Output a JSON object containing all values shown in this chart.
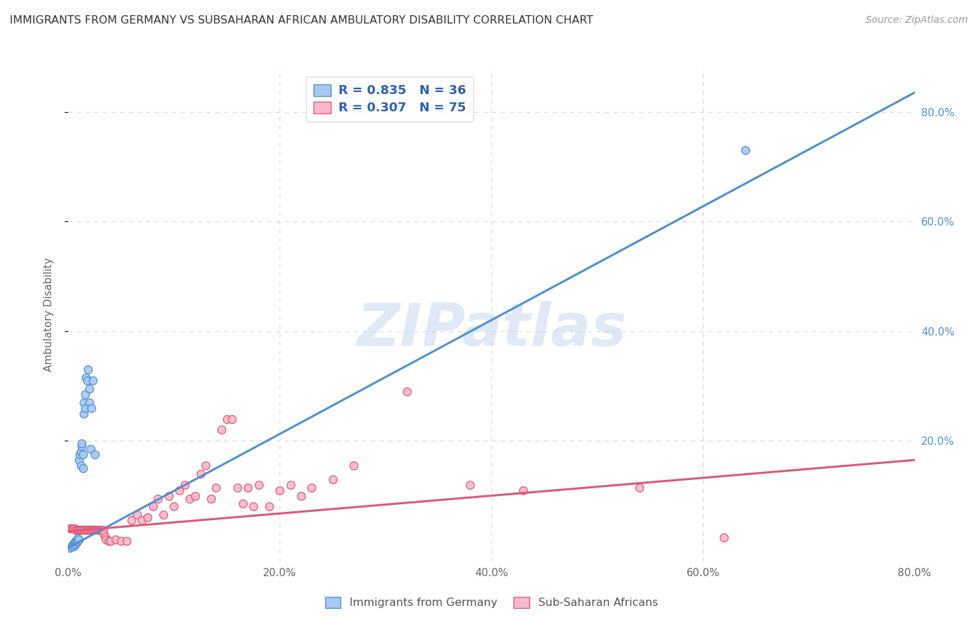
{
  "title": "IMMIGRANTS FROM GERMANY VS SUBSAHARAN AFRICAN AMBULATORY DISABILITY CORRELATION CHART",
  "source": "Source: ZipAtlas.com",
  "ylabel": "Ambulatory Disability",
  "xlim": [
    0,
    0.8
  ],
  "ylim": [
    -0.02,
    0.88
  ],
  "xticks": [
    0.0,
    0.2,
    0.4,
    0.6,
    0.8
  ],
  "xticklabels": [
    "0.0%",
    "20.0%",
    "40.0%",
    "60.0%",
    "80.0%"
  ],
  "yticks_right": [
    0.2,
    0.4,
    0.6,
    0.8
  ],
  "yticklabels_right": [
    "20.0%",
    "40.0%",
    "60.0%",
    "80.0%"
  ],
  "background_color": "#ffffff",
  "grid_color": "#d8d8e8",
  "blue_fill": "#a8c8f0",
  "blue_edge": "#5090d0",
  "pink_fill": "#f8b8cc",
  "pink_edge": "#e05878",
  "blue_line": "#5090d0",
  "pink_line": "#e05878",
  "title_color": "#333333",
  "source_color": "#999999",
  "right_tick_color": "#5090d0",
  "legend_text_color": "#3060b0",
  "label_blue": "Immigrants from Germany",
  "label_pink": "Sub-Saharan Africans",
  "watermark": "ZIPatlas",
  "blue_trend": [
    0.0,
    0.005,
    0.8,
    0.835
  ],
  "pink_trend": [
    0.0,
    0.035,
    0.8,
    0.165
  ],
  "blue_scatter": [
    [
      0.002,
      0.005
    ],
    [
      0.003,
      0.008
    ],
    [
      0.004,
      0.01
    ],
    [
      0.005,
      0.008
    ],
    [
      0.005,
      0.012
    ],
    [
      0.006,
      0.01
    ],
    [
      0.006,
      0.015
    ],
    [
      0.007,
      0.012
    ],
    [
      0.007,
      0.018
    ],
    [
      0.008,
      0.015
    ],
    [
      0.008,
      0.02
    ],
    [
      0.009,
      0.018
    ],
    [
      0.009,
      0.022
    ],
    [
      0.01,
      0.02
    ],
    [
      0.01,
      0.165
    ],
    [
      0.011,
      0.175
    ],
    [
      0.012,
      0.155
    ],
    [
      0.012,
      0.18
    ],
    [
      0.013,
      0.19
    ],
    [
      0.013,
      0.195
    ],
    [
      0.014,
      0.15
    ],
    [
      0.014,
      0.175
    ],
    [
      0.015,
      0.25
    ],
    [
      0.015,
      0.27
    ],
    [
      0.016,
      0.285
    ],
    [
      0.016,
      0.26
    ],
    [
      0.017,
      0.315
    ],
    [
      0.018,
      0.31
    ],
    [
      0.019,
      0.33
    ],
    [
      0.02,
      0.27
    ],
    [
      0.02,
      0.295
    ],
    [
      0.021,
      0.185
    ],
    [
      0.022,
      0.26
    ],
    [
      0.023,
      0.31
    ],
    [
      0.025,
      0.175
    ],
    [
      0.64,
      0.73
    ]
  ],
  "pink_scatter": [
    [
      0.002,
      0.04
    ],
    [
      0.003,
      0.04
    ],
    [
      0.004,
      0.04
    ],
    [
      0.005,
      0.04
    ],
    [
      0.006,
      0.04
    ],
    [
      0.007,
      0.038
    ],
    [
      0.008,
      0.038
    ],
    [
      0.009,
      0.038
    ],
    [
      0.01,
      0.038
    ],
    [
      0.011,
      0.038
    ],
    [
      0.012,
      0.038
    ],
    [
      0.013,
      0.038
    ],
    [
      0.014,
      0.038
    ],
    [
      0.015,
      0.038
    ],
    [
      0.016,
      0.038
    ],
    [
      0.017,
      0.038
    ],
    [
      0.018,
      0.038
    ],
    [
      0.019,
      0.038
    ],
    [
      0.02,
      0.038
    ],
    [
      0.021,
      0.038
    ],
    [
      0.022,
      0.038
    ],
    [
      0.023,
      0.038
    ],
    [
      0.024,
      0.038
    ],
    [
      0.025,
      0.038
    ],
    [
      0.026,
      0.038
    ],
    [
      0.027,
      0.038
    ],
    [
      0.028,
      0.038
    ],
    [
      0.029,
      0.038
    ],
    [
      0.03,
      0.038
    ],
    [
      0.031,
      0.038
    ],
    [
      0.032,
      0.038
    ],
    [
      0.033,
      0.038
    ],
    [
      0.034,
      0.03
    ],
    [
      0.035,
      0.025
    ],
    [
      0.036,
      0.02
    ],
    [
      0.038,
      0.018
    ],
    [
      0.04,
      0.018
    ],
    [
      0.045,
      0.02
    ],
    [
      0.05,
      0.018
    ],
    [
      0.055,
      0.018
    ],
    [
      0.06,
      0.055
    ],
    [
      0.065,
      0.065
    ],
    [
      0.07,
      0.055
    ],
    [
      0.075,
      0.06
    ],
    [
      0.08,
      0.08
    ],
    [
      0.085,
      0.095
    ],
    [
      0.09,
      0.065
    ],
    [
      0.095,
      0.1
    ],
    [
      0.1,
      0.08
    ],
    [
      0.105,
      0.11
    ],
    [
      0.11,
      0.12
    ],
    [
      0.115,
      0.095
    ],
    [
      0.12,
      0.1
    ],
    [
      0.125,
      0.14
    ],
    [
      0.13,
      0.155
    ],
    [
      0.135,
      0.095
    ],
    [
      0.14,
      0.115
    ],
    [
      0.145,
      0.22
    ],
    [
      0.15,
      0.24
    ],
    [
      0.155,
      0.24
    ],
    [
      0.16,
      0.115
    ],
    [
      0.165,
      0.085
    ],
    [
      0.17,
      0.115
    ],
    [
      0.175,
      0.08
    ],
    [
      0.18,
      0.12
    ],
    [
      0.19,
      0.08
    ],
    [
      0.2,
      0.11
    ],
    [
      0.21,
      0.12
    ],
    [
      0.22,
      0.1
    ],
    [
      0.23,
      0.115
    ],
    [
      0.25,
      0.13
    ],
    [
      0.27,
      0.155
    ],
    [
      0.32,
      0.29
    ],
    [
      0.38,
      0.12
    ],
    [
      0.43,
      0.11
    ],
    [
      0.54,
      0.115
    ],
    [
      0.62,
      0.024
    ]
  ]
}
